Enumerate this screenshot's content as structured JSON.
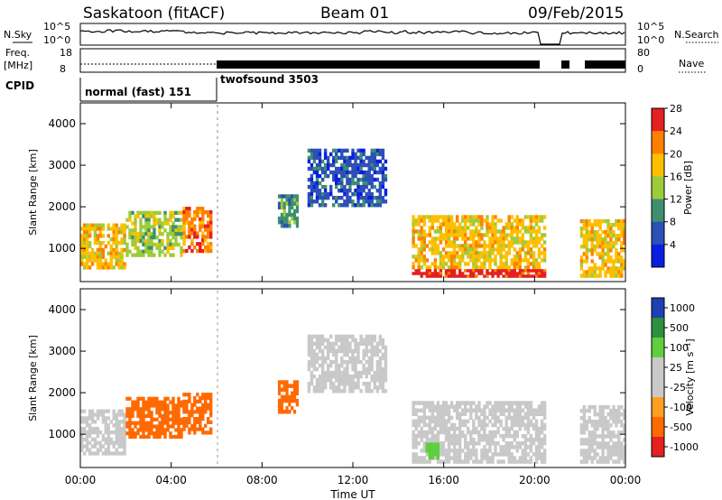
{
  "header": {
    "radar": "Saskatoon (fitACF)",
    "beam": "Beam 01",
    "date": "09/Feb/2015"
  },
  "strips": {
    "nsky_label": "N.Sky",
    "nsky_ticks": [
      "10^5",
      "10^0"
    ],
    "nsearch_label": "N.Search",
    "nsearch_ticks": [
      "10^5",
      "10^0"
    ],
    "freq_label": "Freq.",
    "freq_unit": "[MHz]",
    "freq_ticks": [
      "18",
      "8"
    ],
    "nave_label": "Nave",
    "nave_ticks": [
      "80",
      "0"
    ],
    "cpid_label": "CPID",
    "cpid_segments": [
      {
        "label": "normal (fast) 151",
        "start_hour": 0,
        "end_hour": 6.0
      },
      {
        "label": "twofsound 3503",
        "start_hour": 6.0,
        "end_hour": 24
      }
    ]
  },
  "chart_data": [
    {
      "type": "heatmap",
      "name": "power",
      "ylabel": "Slant Range [km]",
      "ylim": [
        200,
        4500
      ],
      "yticks": [
        "1000",
        "2000",
        "3000",
        "4000"
      ],
      "colorbar": {
        "label": "Power [dB]",
        "levels": [
          "4",
          "8",
          "12",
          "16",
          "20",
          "24",
          "28"
        ],
        "colors": [
          "#0a1ee0",
          "#2d4fb8",
          "#3d8f6e",
          "#9ccc3a",
          "#ffbf00",
          "#ff7f00",
          "#e52020"
        ]
      },
      "regions": [
        {
          "x0": 0.0,
          "x1": 2.0,
          "y0": 500,
          "y1": 1600,
          "value": 20
        },
        {
          "x0": 2.0,
          "x1": 4.5,
          "y0": 800,
          "y1": 1900,
          "value": 16
        },
        {
          "x0": 4.5,
          "x1": 5.8,
          "y0": 900,
          "y1": 2000,
          "value": 24
        },
        {
          "x0": 8.7,
          "x1": 9.6,
          "y0": 1500,
          "y1": 2300,
          "value": 12
        },
        {
          "x0": 10.0,
          "x1": 13.5,
          "y0": 2000,
          "y1": 3400,
          "value": 8
        },
        {
          "x0": 14.6,
          "x1": 20.5,
          "y0": 500,
          "y1": 1800,
          "value": 20
        },
        {
          "x0": 14.6,
          "x1": 20.5,
          "y0": 300,
          "y1": 500,
          "value": 28
        },
        {
          "x0": 22.0,
          "x1": 24.0,
          "y0": 300,
          "y1": 1700,
          "value": 20
        }
      ]
    },
    {
      "type": "heatmap",
      "name": "velocity",
      "ylabel": "Slant Range [km]",
      "ylim": [
        200,
        4500
      ],
      "yticks": [
        "1000",
        "2000",
        "3000",
        "4000"
      ],
      "xlabel": "Time UT",
      "xticks": [
        "00:00",
        "04:00",
        "08:00",
        "12:00",
        "16:00",
        "20:00",
        "00:00"
      ],
      "colorbar": {
        "label": "Velocity [m s⁻¹]",
        "levels": [
          "1000",
          "500",
          "100",
          "25",
          "-25",
          "-100",
          "-500",
          "-1000"
        ],
        "colors": [
          "#1f3fb5",
          "#2e8f3f",
          "#5fcf3f",
          "#c9c9c9",
          "#c9c9c9",
          "#ff9f20",
          "#ff6a00",
          "#e52020"
        ]
      },
      "regions": [
        {
          "x0": 0.0,
          "x1": 2.0,
          "y0": 500,
          "y1": 1600,
          "value": 0
        },
        {
          "x0": 2.0,
          "x1": 4.5,
          "y0": 900,
          "y1": 1900,
          "value": -300
        },
        {
          "x0": 4.5,
          "x1": 5.8,
          "y0": 1000,
          "y1": 2000,
          "value": -300
        },
        {
          "x0": 8.7,
          "x1": 9.6,
          "y0": 1500,
          "y1": 2300,
          "value": -200
        },
        {
          "x0": 10.0,
          "x1": 13.5,
          "y0": 2000,
          "y1": 3400,
          "value": 0
        },
        {
          "x0": 14.6,
          "x1": 20.5,
          "y0": 300,
          "y1": 1800,
          "value": 0
        },
        {
          "x0": 15.2,
          "x1": 15.8,
          "y0": 400,
          "y1": 800,
          "value": 200
        },
        {
          "x0": 22.0,
          "x1": 24.0,
          "y0": 300,
          "y1": 1700,
          "value": 0
        }
      ]
    }
  ]
}
